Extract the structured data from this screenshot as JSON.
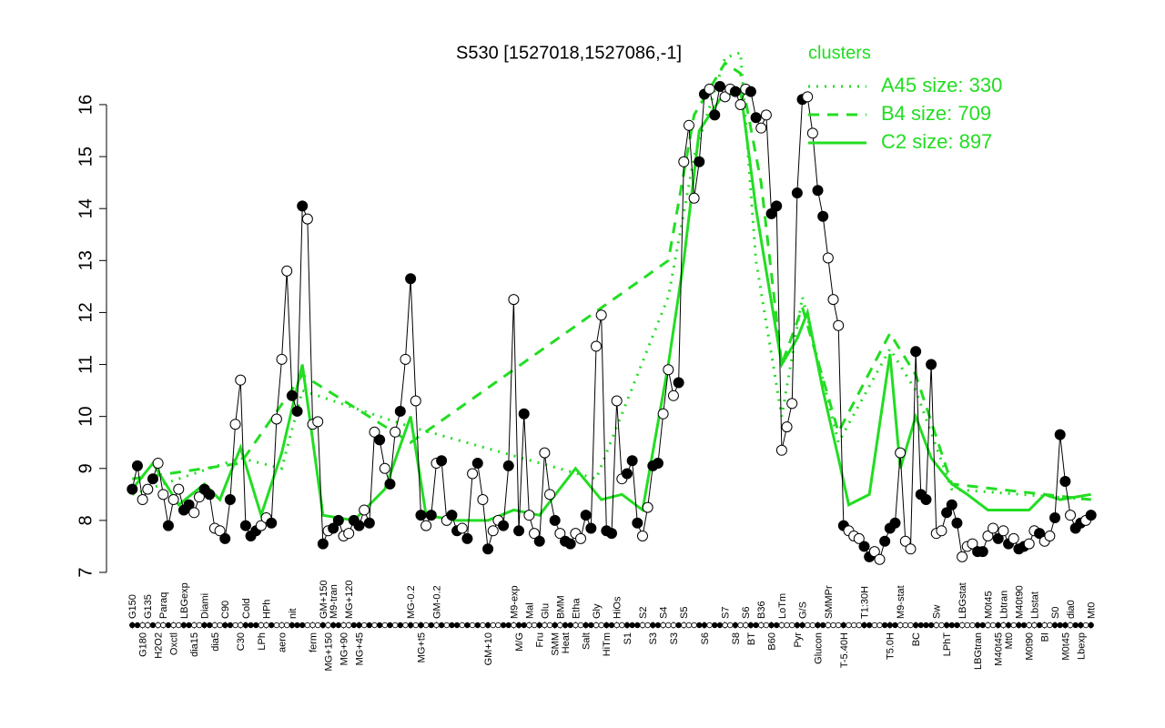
{
  "chart_data": {
    "type": "line",
    "title": "S530 [1527018,1527086,-1]",
    "legend_title": "clusters",
    "xlim": [
      -4,
      192
    ],
    "ylim": [
      7,
      17.4
    ],
    "yticks": [
      7,
      8,
      9,
      10,
      11,
      12,
      13,
      14,
      15,
      16
    ],
    "points": {
      "color": "#000000",
      "x": [
        1,
        2,
        3,
        4,
        5,
        6,
        7,
        8,
        9,
        10,
        11,
        12,
        13,
        14,
        15,
        16,
        17,
        18,
        19,
        20,
        21,
        22,
        23,
        24,
        25,
        26,
        27,
        28,
        29,
        30,
        31,
        32,
        33,
        34,
        35,
        36,
        37,
        38,
        39,
        40,
        41,
        42,
        43,
        44,
        45,
        46,
        47,
        48,
        49,
        50,
        51,
        52,
        53,
        54,
        55,
        56,
        57,
        58,
        59,
        60,
        61,
        62,
        63,
        64,
        65,
        66,
        67,
        68,
        69,
        70,
        71,
        72,
        73,
        74,
        75,
        76,
        77,
        78,
        79,
        80,
        81,
        82,
        83,
        84,
        85,
        86,
        87,
        88,
        89,
        90,
        91,
        92,
        93,
        94,
        95,
        96,
        97,
        98,
        99,
        100,
        101,
        102,
        103,
        104,
        105,
        106,
        107,
        108,
        109,
        110,
        111,
        112,
        113,
        114,
        115,
        116,
        117,
        118,
        119,
        120,
        121,
        122,
        123,
        124,
        125,
        126,
        127,
        128,
        129,
        130,
        131,
        132,
        133,
        134,
        135,
        136,
        137,
        138,
        139,
        140,
        141,
        142,
        143,
        144,
        145,
        146,
        147,
        148,
        149,
        150,
        151,
        152,
        153,
        154,
        155,
        156,
        157,
        158,
        159,
        160,
        161,
        162,
        163,
        164,
        165,
        166,
        167,
        168,
        169,
        170,
        171,
        172,
        173,
        174,
        175,
        176,
        177,
        178,
        179,
        180,
        181,
        182,
        183,
        184,
        185,
        186,
        187
      ],
      "values": [
        8.6,
        9.05,
        8.4,
        8.6,
        8.8,
        9.1,
        8.5,
        7.9,
        8.4,
        8.6,
        8.2,
        8.3,
        8.15,
        8.45,
        8.6,
        8.5,
        7.85,
        7.8,
        7.65,
        8.4,
        9.85,
        10.7,
        7.9,
        7.7,
        7.8,
        7.9,
        8.05,
        7.95,
        9.95,
        11.1,
        12.8,
        10.4,
        10.1,
        14.05,
        13.8,
        9.85,
        9.9,
        7.55,
        7.8,
        7.85,
        8.0,
        7.7,
        7.75,
        8.0,
        7.9,
        8.2,
        7.95,
        9.7,
        9.55,
        9.0,
        8.7,
        9.7,
        10.1,
        11.1,
        12.65,
        10.3,
        8.1,
        7.9,
        8.1,
        9.1,
        9.15,
        8.0,
        8.1,
        7.8,
        7.85,
        7.65,
        8.9,
        9.1,
        8.4,
        7.45,
        7.8,
        8.0,
        7.9,
        9.05,
        12.25,
        7.8,
        10.05,
        8.1,
        7.75,
        7.6,
        9.3,
        8.5,
        8.0,
        7.75,
        7.6,
        7.55,
        7.75,
        7.65,
        8.1,
        7.85,
        11.35,
        11.95,
        7.8,
        7.75,
        10.3,
        8.8,
        8.9,
        9.15,
        7.95,
        7.7,
        8.25,
        9.05,
        9.1,
        10.05,
        10.9,
        10.4,
        10.65,
        14.9,
        15.6,
        14.2,
        14.9,
        16.2,
        16.3,
        15.8,
        16.35,
        16.15,
        16.3,
        16.25,
        16.0,
        16.3,
        16.25,
        15.75,
        15.55,
        15.8,
        13.9,
        14.05,
        9.35,
        9.8,
        10.25,
        14.3,
        16.1,
        16.15,
        15.45,
        14.35,
        13.85,
        13.05,
        12.25,
        11.75,
        7.9,
        7.8,
        7.7,
        7.65,
        7.5,
        7.3,
        7.4,
        7.25,
        7.6,
        7.85,
        7.95,
        9.3,
        7.6,
        7.45,
        11.25,
        8.5,
        8.4,
        11.0,
        7.75,
        7.8,
        8.15,
        8.3,
        7.95,
        7.3,
        7.5,
        7.55,
        7.4,
        7.4,
        7.7,
        7.85,
        7.65,
        7.8,
        7.55,
        7.65,
        7.45,
        7.5,
        7.55,
        7.8,
        7.75,
        7.6,
        7.7,
        8.05,
        9.65,
        8.75,
        8.1,
        7.85,
        7.95,
        8.0,
        8.1
      ],
      "filled": [
        true,
        true,
        false,
        false,
        true,
        false,
        false,
        true,
        false,
        false,
        true,
        true,
        false,
        false,
        true,
        true,
        false,
        false,
        true,
        true,
        false,
        false,
        true,
        true,
        true,
        false,
        false,
        true,
        false,
        false,
        false,
        true,
        true,
        true,
        false,
        false,
        false,
        true,
        false,
        true,
        true,
        false,
        false,
        true,
        true,
        false,
        true,
        false,
        true,
        false,
        true,
        false,
        true,
        false,
        true,
        false,
        true,
        false,
        true,
        false,
        true,
        false,
        true,
        true,
        false,
        true,
        false,
        true,
        false,
        true,
        false,
        false,
        true,
        true,
        false,
        true,
        true,
        false,
        false,
        true,
        false,
        false,
        true,
        false,
        true,
        true,
        false,
        false,
        true,
        true,
        false,
        false,
        true,
        true,
        false,
        false,
        true,
        true,
        true,
        false,
        false,
        true,
        true,
        false,
        false,
        false,
        true,
        false,
        false,
        false,
        true,
        true,
        false,
        true,
        true,
        false,
        false,
        true,
        false,
        false,
        true,
        true,
        false,
        false,
        true,
        true,
        false,
        false,
        false,
        true,
        true,
        false,
        false,
        true,
        true,
        false,
        false,
        false,
        true,
        false,
        false,
        false,
        true,
        true,
        false,
        false,
        true,
        true,
        true,
        false,
        false,
        false,
        true,
        true,
        true,
        true,
        false,
        false,
        true,
        true,
        true,
        false,
        false,
        false,
        true,
        true,
        false,
        false,
        true,
        false,
        true,
        false,
        true,
        true,
        false,
        false,
        true,
        false,
        false,
        true,
        true,
        true,
        false,
        true,
        true,
        false,
        true
      ]
    },
    "series": [
      {
        "name": "A45 size: 330",
        "color": "#22dd22",
        "style": "dotted",
        "x": [
          1,
          22,
          30,
          34,
          55,
          91,
          105,
          110,
          116,
          119,
          122,
          127,
          131,
          138,
          148,
          153,
          160,
          187
        ],
        "values": [
          8.5,
          9.2,
          9.0,
          10.5,
          9.8,
          8.8,
          12.3,
          15.0,
          16.9,
          17.0,
          13.0,
          10.0,
          12.3,
          9.5,
          11.3,
          10.5,
          8.6,
          8.4
        ]
      },
      {
        "name": "B4 size: 709",
        "color": "#22dd22",
        "style": "dashed",
        "x": [
          1,
          22,
          34,
          55,
          105,
          110,
          116,
          119,
          123,
          127,
          131,
          138,
          148,
          153,
          160,
          187
        ],
        "values": [
          8.8,
          9.1,
          10.8,
          9.5,
          13.0,
          15.8,
          16.8,
          16.6,
          14.5,
          11.0,
          12.1,
          9.7,
          11.6,
          10.8,
          8.7,
          8.4
        ]
      },
      {
        "name": "C2 size: 897",
        "color": "#22dd22",
        "style": "solid",
        "x": [
          1,
          5,
          10,
          15,
          18,
          22,
          26,
          30,
          34,
          38,
          44,
          50,
          55,
          58,
          64,
          70,
          75,
          80,
          87,
          92,
          96,
          100,
          105,
          108,
          111,
          115,
          119,
          122,
          127,
          130,
          132,
          135,
          138,
          140,
          144,
          148,
          150,
          153,
          156,
          160,
          163,
          167,
          170,
          175,
          178,
          181,
          187
        ],
        "values": [
          8.6,
          9.1,
          8.3,
          8.7,
          8.4,
          9.4,
          8.1,
          9.3,
          11.0,
          8.1,
          8.0,
          8.6,
          10.0,
          8.1,
          8.0,
          8.0,
          8.2,
          8.1,
          9.0,
          8.4,
          8.5,
          8.2,
          11.0,
          13.0,
          15.5,
          16.1,
          16.3,
          14.0,
          11.0,
          11.5,
          12.0,
          10.5,
          9.2,
          8.3,
          8.5,
          11.2,
          9.0,
          10.0,
          9.2,
          8.7,
          8.5,
          8.2,
          8.2,
          8.2,
          8.5,
          8.4,
          8.5
        ]
      }
    ],
    "xticks": [
      {
        "value": 1,
        "label": "G150"
      },
      {
        "value": 3,
        "label": "G180"
      },
      {
        "value": 4,
        "label": "G135"
      },
      {
        "value": 6,
        "label": "H2O2"
      },
      {
        "value": 7,
        "label": "Paraq"
      },
      {
        "value": 9,
        "label": "Oxctl"
      },
      {
        "value": 11,
        "label": "LBGexp"
      },
      {
        "value": 13,
        "label": "dia15"
      },
      {
        "value": 15,
        "label": "Diami"
      },
      {
        "value": 17,
        "label": "dia5"
      },
      {
        "value": 19,
        "label": "C90"
      },
      {
        "value": 22,
        "label": "C30"
      },
      {
        "value": 23,
        "label": "Cold"
      },
      {
        "value": 26,
        "label": "LPh"
      },
      {
        "value": 27,
        "label": "HPh"
      },
      {
        "value": 30,
        "label": "aero"
      },
      {
        "value": 32,
        "label": "nit"
      },
      {
        "value": 36,
        "label": "ferm"
      },
      {
        "value": 38,
        "label": "GM+150"
      },
      {
        "value": 39,
        "label": "MG+150"
      },
      {
        "value": 40,
        "label": "M9-tran"
      },
      {
        "value": 42,
        "label": "MG+90"
      },
      {
        "value": 43,
        "label": "MG+120"
      },
      {
        "value": 45,
        "label": "MG+45"
      },
      {
        "value": 55,
        "label": "MG-0.2"
      },
      {
        "value": 57,
        "label": "MG+t5"
      },
      {
        "value": 60,
        "label": "GM-0.2"
      },
      {
        "value": 70,
        "label": "GM+10"
      },
      {
        "value": 75,
        "label": "M9-exp"
      },
      {
        "value": 76,
        "label": "M/G"
      },
      {
        "value": 78,
        "label": "Mal"
      },
      {
        "value": 80,
        "label": "Fru"
      },
      {
        "value": 81,
        "label": "Glu"
      },
      {
        "value": 83,
        "label": "SMM"
      },
      {
        "value": 84,
        "label": "BMM"
      },
      {
        "value": 85,
        "label": "Heat"
      },
      {
        "value": 87,
        "label": "Etha"
      },
      {
        "value": 89,
        "label": "Salt"
      },
      {
        "value": 91,
        "label": "Gly"
      },
      {
        "value": 93,
        "label": "HiTm"
      },
      {
        "value": 95,
        "label": "HiOs"
      },
      {
        "value": 97,
        "label": "S1"
      },
      {
        "value": 100,
        "label": "S2"
      },
      {
        "value": 102,
        "label": "S3"
      },
      {
        "value": 104,
        "label": "S4"
      },
      {
        "value": 106,
        "label": "S3"
      },
      {
        "value": 108,
        "label": "S5"
      },
      {
        "value": 112,
        "label": "S6"
      },
      {
        "value": 116,
        "label": "S7"
      },
      {
        "value": 118,
        "label": "S8"
      },
      {
        "value": 120,
        "label": "S6"
      },
      {
        "value": 121,
        "label": "BT"
      },
      {
        "value": 123,
        "label": "B36"
      },
      {
        "value": 125,
        "label": "B60"
      },
      {
        "value": 127,
        "label": "LoTm"
      },
      {
        "value": 130,
        "label": "Pyr"
      },
      {
        "value": 131,
        "label": "G/S"
      },
      {
        "value": 134,
        "label": "Glucon"
      },
      {
        "value": 136,
        "label": "SMMPr"
      },
      {
        "value": 139,
        "label": "T-5.40H"
      },
      {
        "value": 143,
        "label": "T1:30H"
      },
      {
        "value": 148,
        "label": "T5.0H"
      },
      {
        "value": 150,
        "label": "M9-stat"
      },
      {
        "value": 153,
        "label": "BC"
      },
      {
        "value": 157,
        "label": "Sw"
      },
      {
        "value": 159,
        "label": "LPhT"
      },
      {
        "value": 162,
        "label": "LBGstat"
      },
      {
        "value": 165,
        "label": "LBGtran"
      },
      {
        "value": 167,
        "label": "M0t45"
      },
      {
        "value": 169,
        "label": "M40t45"
      },
      {
        "value": 170,
        "label": "Lbtran"
      },
      {
        "value": 171,
        "label": "Mt0"
      },
      {
        "value": 173,
        "label": "M40t90"
      },
      {
        "value": 175,
        "label": "M0t90"
      },
      {
        "value": 176,
        "label": "Lbstat"
      },
      {
        "value": 178,
        "label": "BI"
      },
      {
        "value": 180,
        "label": "S0"
      },
      {
        "value": 182,
        "label": "M0t45"
      },
      {
        "value": 183,
        "label": "dia0"
      },
      {
        "value": 185,
        "label": "Lbexp"
      },
      {
        "value": 187,
        "label": "Mt0"
      }
    ]
  }
}
